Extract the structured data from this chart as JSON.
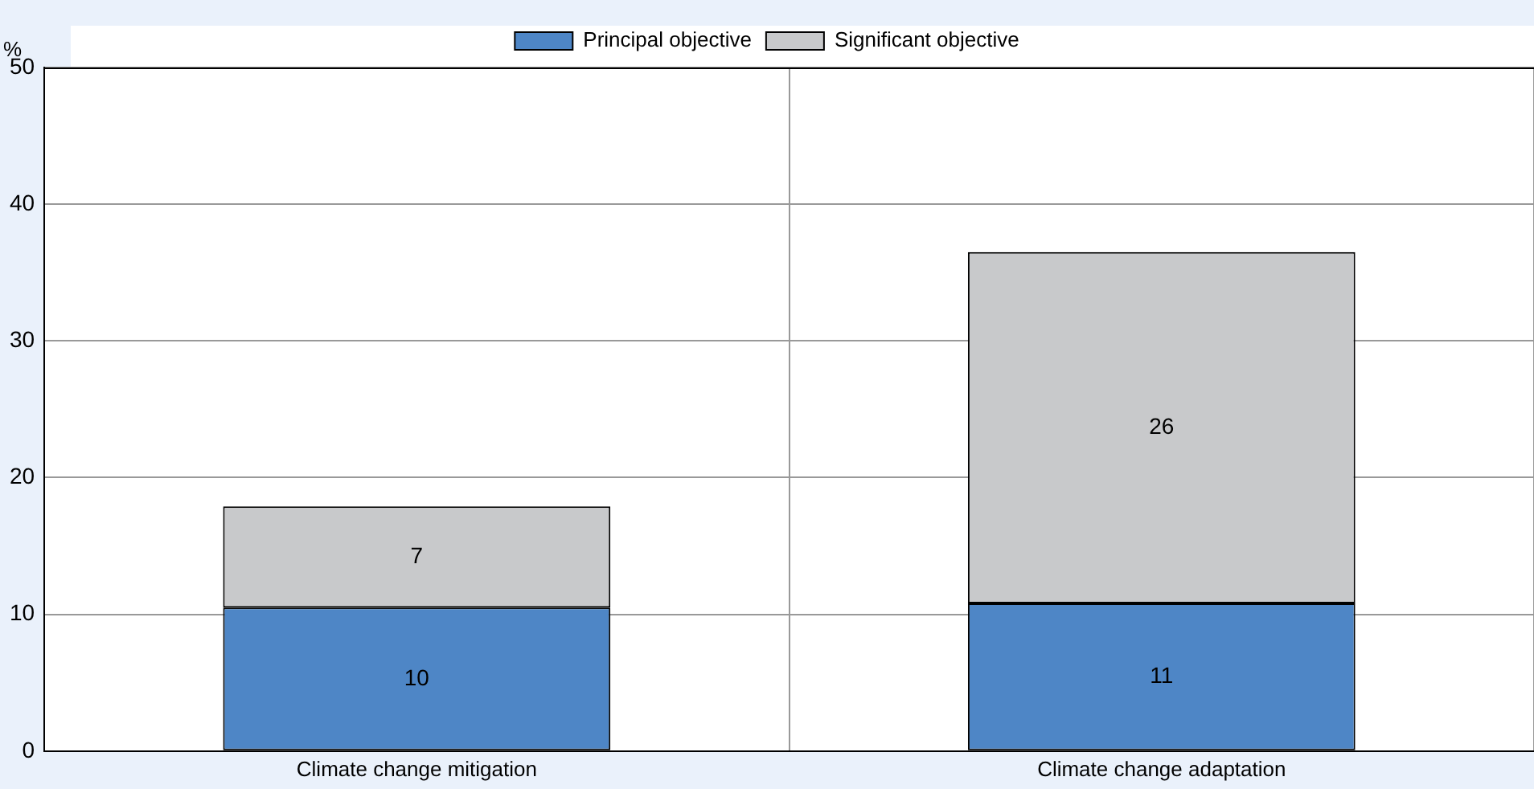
{
  "chart_data": {
    "type": "bar",
    "ylabel": "%",
    "categories": [
      "Climate change mitigation",
      "Climate change adaptation"
    ],
    "series": [
      {
        "name": "Principal objective",
        "color": "#4e86c6",
        "values": [
          10.5,
          10.8
        ],
        "value_labels": [
          "10",
          "11"
        ]
      },
      {
        "name": "Significant objective",
        "color": "#c8c9cb",
        "values": [
          7.4,
          25.7
        ],
        "value_labels": [
          "7",
          "26"
        ]
      }
    ],
    "stacked": true,
    "ylim": [
      0,
      50
    ],
    "yticks": [
      0,
      10,
      20,
      30,
      40,
      50
    ],
    "grid": true,
    "legend": "top"
  }
}
